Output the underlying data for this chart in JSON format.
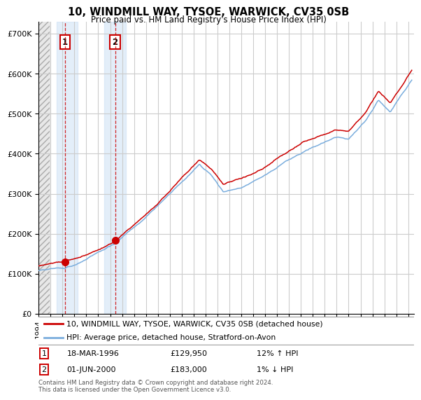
{
  "title": "10, WINDMILL WAY, TYSOE, WARWICK, CV35 0SB",
  "subtitle": "Price paid vs. HM Land Registry's House Price Index (HPI)",
  "ytick_values": [
    0,
    100000,
    200000,
    300000,
    400000,
    500000,
    600000,
    700000
  ],
  "ylim": [
    0,
    730000
  ],
  "xlim_start": 1994.0,
  "xlim_end": 2025.5,
  "sale1_date": 1996.21,
  "sale1_price": 129950,
  "sale1_label": "1",
  "sale2_date": 2000.42,
  "sale2_price": 183000,
  "sale2_label": "2",
  "legend_line1": "10, WINDMILL WAY, TYSOE, WARWICK, CV35 0SB (detached house)",
  "legend_line2": "HPI: Average price, detached house, Stratford-on-Avon",
  "annotation1": [
    "1",
    "18-MAR-1996",
    "£129,950",
    "12% ↑ HPI"
  ],
  "annotation2": [
    "2",
    "01-JUN-2000",
    "£183,000",
    "1% ↓ HPI"
  ],
  "footer": "Contains HM Land Registry data © Crown copyright and database right 2024.\nThis data is licensed under the Open Government Licence v3.0.",
  "sale_dot_color": "#cc0000",
  "hpi_line_color": "#7aaddd",
  "price_line_color": "#cc0000",
  "grid_color": "#cccccc",
  "bg_color": "#ffffff",
  "hatch_region_end": 1994.92,
  "sale1_band_start": 1995.5,
  "sale1_band_end": 1997.3,
  "sale2_band_start": 1999.5,
  "sale2_band_end": 2001.3
}
